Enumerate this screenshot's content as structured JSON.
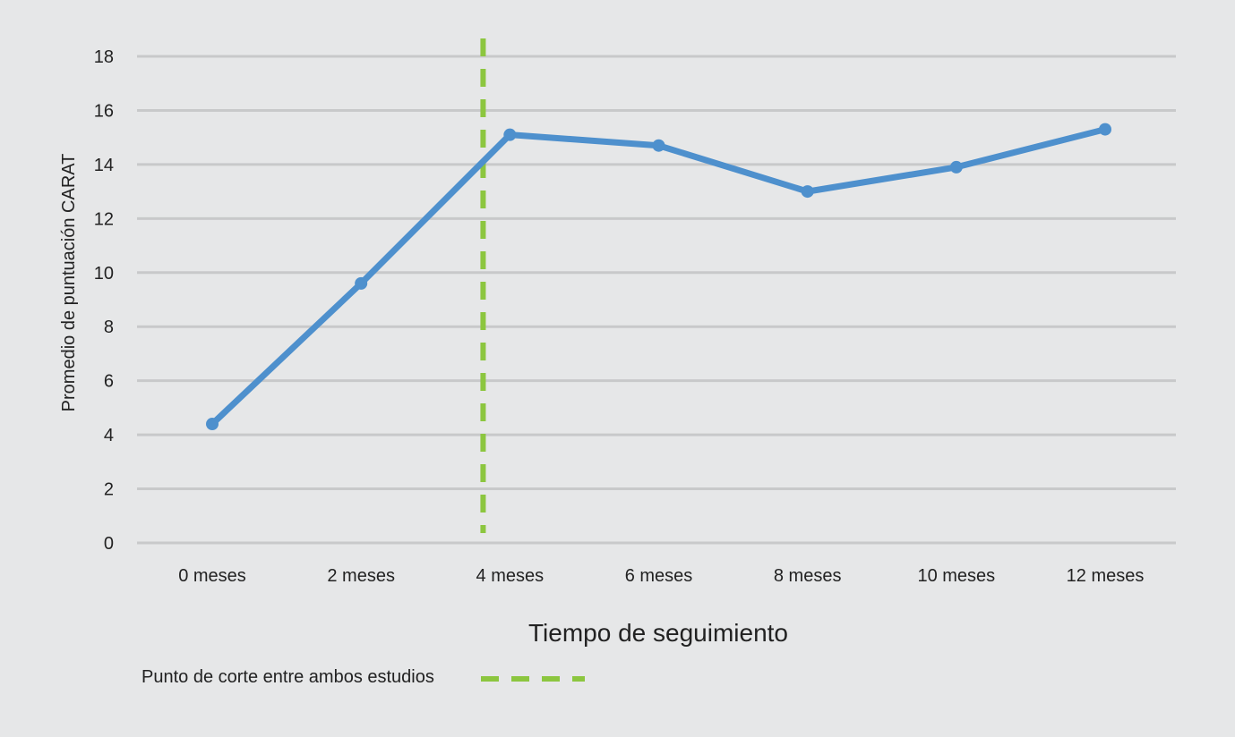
{
  "chart_data": {
    "type": "line",
    "title": "",
    "xlabel": "Tiempo de seguimiento",
    "ylabel": "Promedio de puntuación CARAT",
    "categories": [
      "0 meses",
      "2 meses",
      "4 meses",
      "6 meses",
      "8 meses",
      "10 meses",
      "12 meses"
    ],
    "series": [
      {
        "values": [
          4.4,
          9.6,
          15.1,
          14.7,
          13.0,
          13.9,
          15.3
        ],
        "color": "#4e90cd"
      }
    ],
    "ylim": [
      0,
      18
    ],
    "yticks": [
      "0",
      "2",
      "4",
      "6",
      "8",
      "10",
      "12",
      "14",
      "16",
      "18"
    ],
    "grid": true,
    "cutoff": {
      "position_between": [
        "2 meses",
        "4 meses"
      ],
      "position_fraction": 0.82,
      "color": "#8cc63f",
      "style": "dashed"
    },
    "legend": {
      "placement": "bottom-left",
      "label": "Punto de corte entre ambos estudios"
    },
    "colors": {
      "background": "#e6e7e8",
      "gridline": "#c8c9ca",
      "line": "#4e90cd",
      "cutoff": "#8cc63f"
    }
  }
}
